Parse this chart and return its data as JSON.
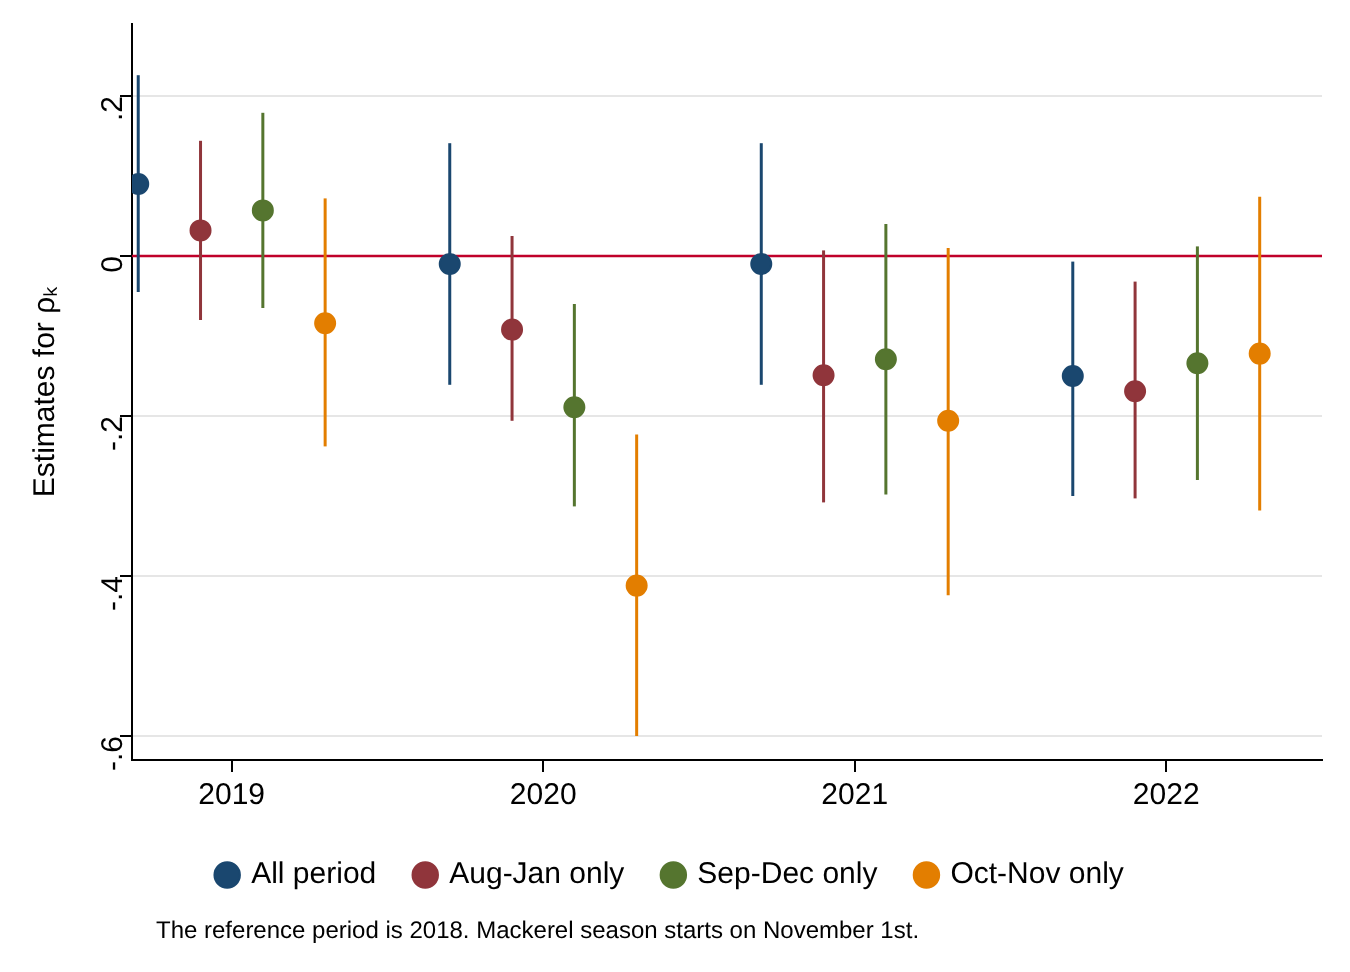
{
  "chart_data": {
    "type": "scatter",
    "ylabel": "Estimates for ρₖ",
    "xlim": [
      2018.68,
      2022.5
    ],
    "xticks": [
      2019,
      2020,
      2021,
      2022
    ],
    "ylim": [
      -0.63,
      0.29
    ],
    "yticks": [
      {
        "value": -0.6,
        "label": "-.6"
      },
      {
        "value": -0.4,
        "label": "-.4"
      },
      {
        "value": -0.2,
        "label": "-.2"
      },
      {
        "value": 0,
        "label": "0"
      },
      {
        "value": 0.2,
        "label": ".2"
      }
    ],
    "grid": "y",
    "legend": "bottom",
    "marker": "circle",
    "ref_lines": [
      {
        "axis": "y",
        "value": 0,
        "color": "#c0002a"
      }
    ],
    "annotations": [
      "The reference period is 2018. Mackerel season starts on November 1st."
    ],
    "series": [
      {
        "name": "All period",
        "color": "#1a476f",
        "x": [
          2018.7,
          2019.7,
          2020.7,
          2021.7
        ],
        "values": [
          0.09,
          -0.01,
          -0.01,
          -0.15
        ],
        "errors": [
          [
            -0.045,
            0.226
          ],
          [
            -0.161,
            0.141
          ],
          [
            -0.161,
            0.141
          ],
          [
            -0.3,
            -0.007
          ]
        ]
      },
      {
        "name": "Aug-Jan only",
        "color": "#90353b",
        "x": [
          2018.9,
          2019.9,
          2020.9,
          2021.9
        ],
        "values": [
          0.032,
          -0.092,
          -0.149,
          -0.169
        ],
        "errors": [
          [
            -0.08,
            0.144
          ],
          [
            -0.206,
            0.025
          ],
          [
            -0.308,
            0.007
          ],
          [
            -0.303,
            -0.032
          ]
        ]
      },
      {
        "name": "Sep-Dec only",
        "color": "#55752f",
        "x": [
          2019.1,
          2020.1,
          2021.1,
          2022.1
        ],
        "values": [
          0.057,
          -0.189,
          -0.129,
          -0.134
        ],
        "errors": [
          [
            -0.065,
            0.179
          ],
          [
            -0.313,
            -0.06
          ],
          [
            -0.298,
            0.04
          ],
          [
            -0.28,
            0.012
          ]
        ]
      },
      {
        "name": "Oct-Nov only",
        "color": "#e37e00",
        "x": [
          2019.3,
          2020.3,
          2021.3,
          2022.3
        ],
        "values": [
          -0.084,
          -0.412,
          -0.206,
          -0.122
        ],
        "errors": [
          [
            -0.238,
            0.072
          ],
          [
            -0.6,
            -0.223
          ],
          [
            -0.424,
            0.01
          ],
          [
            -0.318,
            0.074
          ]
        ]
      }
    ]
  }
}
